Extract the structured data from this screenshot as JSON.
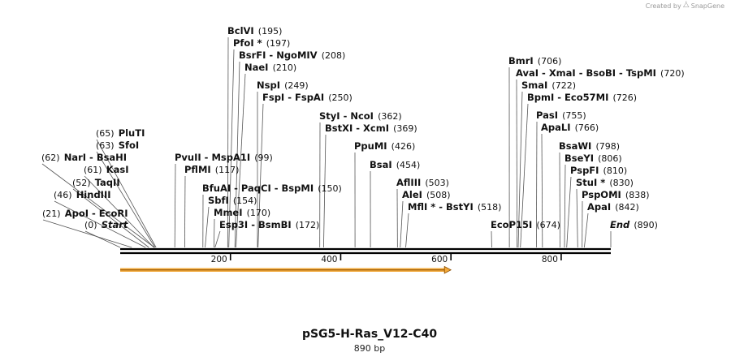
{
  "credit": {
    "prefix": "Created by",
    "brand": "SnapGene",
    "icon": "snapgene-logo-icon"
  },
  "plasmid": {
    "name": "pSG5-H-Ras_V12-C40",
    "size_label": "890 bp",
    "length": 890
  },
  "axis": {
    "ticks": [
      200,
      400,
      600,
      800
    ]
  },
  "feature": {
    "name": "orf-arrow",
    "start": 0,
    "end": 600,
    "color": "#f2a93b"
  },
  "enzymes": [
    {
      "y": 281,
      "tx": 104,
      "pos": 0,
      "parts": [
        {
          "t": "(0)",
          "p": 1
        },
        {
          "t": "Start",
          "i": 1
        }
      ]
    },
    {
      "y": 267,
      "tx": 52,
      "pos": 21,
      "parts": [
        {
          "t": "(21)",
          "p": 1
        },
        {
          "t": "ApoI"
        },
        {
          "t": "EcoRI",
          "d": 1
        }
      ]
    },
    {
      "y": 244,
      "tx": 66,
      "pos": 46,
      "parts": [
        {
          "t": "(46)",
          "p": 1
        },
        {
          "t": "HindIII"
        }
      ]
    },
    {
      "y": 229,
      "tx": 89,
      "pos": 52,
      "parts": [
        {
          "t": "(52)",
          "p": 1
        },
        {
          "t": "TaqII"
        }
      ]
    },
    {
      "y": 213,
      "tx": 103,
      "pos": 61,
      "parts": [
        {
          "t": "(61)",
          "p": 1
        },
        {
          "t": "KasI"
        }
      ]
    },
    {
      "y": 198,
      "tx": 51,
      "pos": 62,
      "parts": [
        {
          "t": "(62)",
          "p": 1
        },
        {
          "t": "NarI"
        },
        {
          "t": "BsaHI",
          "d": 1
        }
      ]
    },
    {
      "y": 183,
      "tx": 118,
      "pos": 63,
      "parts": [
        {
          "t": "(63)",
          "p": 1
        },
        {
          "t": "SfoI"
        }
      ]
    },
    {
      "y": 168,
      "tx": 118,
      "pos": 65,
      "parts": [
        {
          "t": "(65)",
          "p": 1
        },
        {
          "t": "PluTI"
        }
      ]
    },
    {
      "y": 198,
      "tx": 215,
      "pos": 99,
      "parts": [
        {
          "t": "PvuII"
        },
        {
          "t": "MspA1I",
          "d": 1
        },
        {
          "t": "(99)",
          "p": 1
        }
      ]
    },
    {
      "y": 213,
      "tx": 227,
      "pos": 117,
      "parts": [
        {
          "t": "PflMI"
        },
        {
          "t": "(117)",
          "p": 1
        }
      ]
    },
    {
      "y": 236,
      "tx": 249,
      "pos": 150,
      "parts": [
        {
          "t": "BfuAI"
        },
        {
          "t": "PaqCI",
          "d": 1
        },
        {
          "t": "BspMI",
          "d": 1
        },
        {
          "t": "(150)",
          "p": 1
        }
      ]
    },
    {
      "y": 251,
      "tx": 256,
      "pos": 154,
      "parts": [
        {
          "t": "SbfI"
        },
        {
          "t": "(154)",
          "p": 1
        }
      ]
    },
    {
      "y": 266,
      "tx": 263,
      "pos": 170,
      "parts": [
        {
          "t": "MmeI"
        },
        {
          "t": "(170)",
          "p": 1
        }
      ]
    },
    {
      "y": 281,
      "tx": 270,
      "pos": 172,
      "parts": [
        {
          "t": "Esp3I"
        },
        {
          "t": "BsmBI",
          "d": 1
        },
        {
          "t": "(172)",
          "p": 1
        }
      ]
    },
    {
      "y": 42,
      "tx": 280,
      "pos": 195,
      "parts": [
        {
          "t": "BclVI"
        },
        {
          "t": "(195)",
          "p": 1
        }
      ]
    },
    {
      "y": 57,
      "tx": 287,
      "pos": 197,
      "parts": [
        {
          "t": "PfoI *"
        },
        {
          "t": "(197)",
          "p": 1
        }
      ]
    },
    {
      "y": 72,
      "tx": 294,
      "pos": 208,
      "parts": [
        {
          "t": "BsrFI"
        },
        {
          "t": "NgoMIV",
          "d": 1
        },
        {
          "t": "(208)",
          "p": 1
        }
      ]
    },
    {
      "y": 87,
      "tx": 301,
      "pos": 210,
      "parts": [
        {
          "t": "NaeI"
        },
        {
          "t": "(210)",
          "p": 1
        }
      ]
    },
    {
      "y": 109,
      "tx": 316,
      "pos": 249,
      "parts": [
        {
          "t": "NspI"
        },
        {
          "t": "(249)",
          "p": 1
        }
      ]
    },
    {
      "y": 124,
      "tx": 323,
      "pos": 250,
      "parts": [
        {
          "t": "FspI"
        },
        {
          "t": "FspAI",
          "d": 1
        },
        {
          "t": "(250)",
          "p": 1
        }
      ]
    },
    {
      "y": 147,
      "tx": 393,
      "pos": 362,
      "parts": [
        {
          "t": "StyI"
        },
        {
          "t": "NcoI",
          "d": 1
        },
        {
          "t": "(362)",
          "p": 1
        }
      ]
    },
    {
      "y": 162,
      "tx": 400,
      "pos": 369,
      "parts": [
        {
          "t": "BstXI"
        },
        {
          "t": "XcmI",
          "d": 1
        },
        {
          "t": "(369)",
          "p": 1
        }
      ]
    },
    {
      "y": 184,
      "tx": 436,
      "pos": 426,
      "parts": [
        {
          "t": "PpuMI"
        },
        {
          "t": "(426)",
          "p": 1
        }
      ]
    },
    {
      "y": 207,
      "tx": 455,
      "pos": 454,
      "parts": [
        {
          "t": "BsaI"
        },
        {
          "t": "(454)",
          "p": 1
        }
      ]
    },
    {
      "y": 229,
      "tx": 488,
      "pos": 503,
      "parts": [
        {
          "t": "AflIII"
        },
        {
          "t": "(503)",
          "p": 1
        }
      ]
    },
    {
      "y": 244,
      "tx": 495,
      "pos": 508,
      "parts": [
        {
          "t": "AleI"
        },
        {
          "t": "(508)",
          "p": 1
        }
      ]
    },
    {
      "y": 259,
      "tx": 502,
      "pos": 518,
      "parts": [
        {
          "t": "MflI *"
        },
        {
          "t": "BstYI",
          "d": 1
        },
        {
          "t": "(518)",
          "p": 1
        }
      ]
    },
    {
      "y": 281,
      "tx": 604,
      "pos": 674,
      "parts": [
        {
          "t": "EcoP15I"
        },
        {
          "t": "(674)",
          "p": 1
        }
      ]
    },
    {
      "y": 79,
      "tx": 626,
      "pos": 706,
      "parts": [
        {
          "t": "BmrI"
        },
        {
          "t": "(706)",
          "p": 1
        }
      ]
    },
    {
      "y": 94,
      "tx": 635,
      "pos": 720,
      "parts": [
        {
          "t": "AvaI"
        },
        {
          "t": "XmaI",
          "d": 1
        },
        {
          "t": "BsoBI",
          "d": 1
        },
        {
          "t": "TspMI",
          "d": 1
        },
        {
          "t": "(720)",
          "p": 1
        }
      ]
    },
    {
      "y": 109,
      "tx": 642,
      "pos": 722,
      "parts": [
        {
          "t": "SmaI"
        },
        {
          "t": "(722)",
          "p": 1
        }
      ]
    },
    {
      "y": 124,
      "tx": 649,
      "pos": 726,
      "parts": [
        {
          "t": "BpmI"
        },
        {
          "t": "Eco57MI",
          "d": 1
        },
        {
          "t": "(726)",
          "p": 1
        }
      ]
    },
    {
      "y": 146,
      "tx": 660,
      "pos": 755,
      "parts": [
        {
          "t": "PasI"
        },
        {
          "t": "(755)",
          "p": 1
        }
      ]
    },
    {
      "y": 161,
      "tx": 666,
      "pos": 766,
      "parts": [
        {
          "t": "ApaLI"
        },
        {
          "t": "(766)",
          "p": 1
        }
      ]
    },
    {
      "y": 184,
      "tx": 688,
      "pos": 798,
      "parts": [
        {
          "t": "BsaWI"
        },
        {
          "t": "(798)",
          "p": 1
        }
      ]
    },
    {
      "y": 199,
      "tx": 695,
      "pos": 806,
      "parts": [
        {
          "t": "BseYI"
        },
        {
          "t": "(806)",
          "p": 1
        }
      ]
    },
    {
      "y": 214,
      "tx": 702,
      "pos": 810,
      "parts": [
        {
          "t": "PspFI"
        },
        {
          "t": "(810)",
          "p": 1
        }
      ]
    },
    {
      "y": 229,
      "tx": 709,
      "pos": 830,
      "parts": [
        {
          "t": "StuI *"
        },
        {
          "t": "(830)",
          "p": 1
        }
      ]
    },
    {
      "y": 244,
      "tx": 716,
      "pos": 838,
      "parts": [
        {
          "t": "PspOMI"
        },
        {
          "t": "(838)",
          "p": 1
        }
      ]
    },
    {
      "y": 259,
      "tx": 723,
      "pos": 842,
      "parts": [
        {
          "t": "ApaI"
        },
        {
          "t": "(842)",
          "p": 1
        }
      ]
    },
    {
      "y": 281,
      "tx": 751,
      "pos": 890,
      "parts": [
        {
          "t": "End",
          "i": 1
        },
        {
          "t": "(890)",
          "p": 1
        }
      ]
    }
  ]
}
